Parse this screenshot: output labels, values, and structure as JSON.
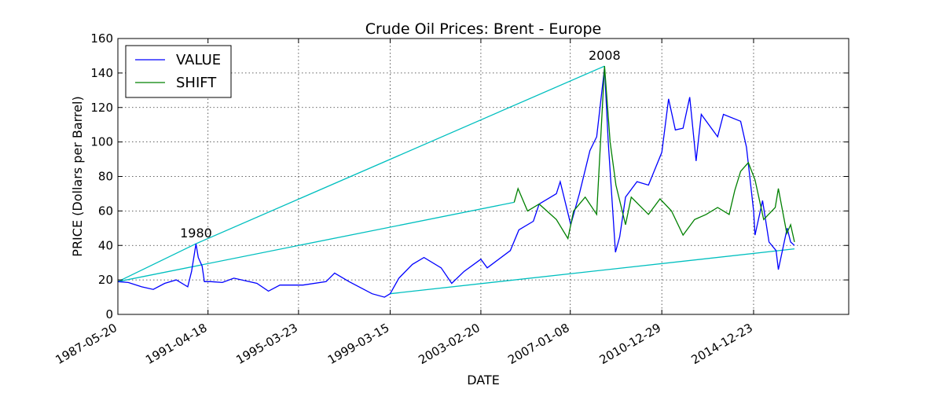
{
  "chart_data": {
    "type": "line",
    "title": "Crude Oil Prices: Brent - Europe",
    "xlabel": "DATE",
    "ylabel": "PRICE (Dollars per Barrel)",
    "x_range": [
      "1987-05-20",
      "2019-02-08"
    ],
    "ylim": [
      0,
      160
    ],
    "y_ticks": [
      0,
      20,
      40,
      60,
      80,
      100,
      120,
      140,
      160
    ],
    "x_ticks": [
      "1987-05-20",
      "1991-04-18",
      "1995-03-23",
      "1999-03-15",
      "2003-02-20",
      "2007-01-08",
      "2010-12-29",
      "2014-12-23"
    ],
    "grid": true,
    "legend_position": "top-left",
    "series": [
      {
        "name": "VALUE",
        "color": "#0000ff",
        "points": [
          [
            "1987-05-20",
            19
          ],
          [
            "1987-11-01",
            18.5
          ],
          [
            "1988-06-01",
            16
          ],
          [
            "1988-12-01",
            14.5
          ],
          [
            "1989-06-01",
            18
          ],
          [
            "1989-12-01",
            20
          ],
          [
            "1990-06-01",
            16
          ],
          [
            "1990-08-01",
            25
          ],
          [
            "1990-10-10",
            41
          ],
          [
            "1990-11-15",
            33
          ],
          [
            "1991-01-15",
            28
          ],
          [
            "1991-02-20",
            19
          ],
          [
            "1991-06-01",
            19
          ],
          [
            "1991-12-01",
            18.5
          ],
          [
            "1992-06-01",
            21
          ],
          [
            "1993-06-01",
            18
          ],
          [
            "1993-12-01",
            13.5
          ],
          [
            "1994-06-01",
            17
          ],
          [
            "1995-06-01",
            17
          ],
          [
            "1996-06-01",
            19
          ],
          [
            "1996-10-15",
            24
          ],
          [
            "1997-06-01",
            19
          ],
          [
            "1998-06-01",
            12
          ],
          [
            "1998-12-15",
            10
          ],
          [
            "1999-03-15",
            12
          ],
          [
            "1999-08-01",
            21
          ],
          [
            "2000-03-01",
            29
          ],
          [
            "2000-09-01",
            33
          ],
          [
            "2001-06-01",
            27
          ],
          [
            "2001-11-15",
            18
          ],
          [
            "2002-06-01",
            25
          ],
          [
            "2003-02-20",
            32
          ],
          [
            "2003-06-01",
            27
          ],
          [
            "2004-06-01",
            37
          ],
          [
            "2004-10-15",
            49
          ],
          [
            "2005-06-01",
            54
          ],
          [
            "2005-09-01",
            64
          ],
          [
            "2006-06-01",
            70
          ],
          [
            "2006-08-01",
            77
          ],
          [
            "2007-01-15",
            52
          ],
          [
            "2007-06-01",
            70
          ],
          [
            "2007-11-15",
            95
          ],
          [
            "2008-03-01",
            103
          ],
          [
            "2008-07-04",
            143
          ],
          [
            "2008-09-01",
            100
          ],
          [
            "2008-12-24",
            36
          ],
          [
            "2009-03-01",
            45
          ],
          [
            "2009-06-01",
            68
          ],
          [
            "2009-12-01",
            77
          ],
          [
            "2010-06-01",
            75
          ],
          [
            "2010-12-29",
            94
          ],
          [
            "2011-04-15",
            125
          ],
          [
            "2011-08-01",
            107
          ],
          [
            "2011-12-01",
            108
          ],
          [
            "2012-03-15",
            126
          ],
          [
            "2012-06-25",
            89
          ],
          [
            "2012-09-15",
            116
          ],
          [
            "2013-06-01",
            103
          ],
          [
            "2013-09-01",
            116
          ],
          [
            "2014-06-01",
            112
          ],
          [
            "2014-09-01",
            97
          ],
          [
            "2014-12-23",
            60
          ],
          [
            "2015-01-15",
            46
          ],
          [
            "2015-05-15",
            66
          ],
          [
            "2015-08-25",
            42
          ],
          [
            "2015-12-15",
            37
          ],
          [
            "2016-01-20",
            26
          ],
          [
            "2016-06-08",
            50
          ],
          [
            "2016-08-01",
            42
          ],
          [
            "2016-10-01",
            40
          ]
        ]
      },
      {
        "name": "SHIFT",
        "color": "#008000",
        "points": [
          [
            "2004-08-01",
            65
          ],
          [
            "2004-10-01",
            73
          ],
          [
            "2005-03-01",
            60
          ],
          [
            "2005-09-01",
            64
          ],
          [
            "2006-06-01",
            55
          ],
          [
            "2006-12-01",
            44
          ],
          [
            "2007-03-01",
            60
          ],
          [
            "2007-09-01",
            68
          ],
          [
            "2008-03-01",
            58
          ],
          [
            "2008-07-04",
            144
          ],
          [
            "2008-10-01",
            100
          ],
          [
            "2009-01-01",
            75
          ],
          [
            "2009-06-01",
            52
          ],
          [
            "2009-09-01",
            68
          ],
          [
            "2010-06-01",
            58
          ],
          [
            "2010-12-01",
            67
          ],
          [
            "2011-06-01",
            60
          ],
          [
            "2011-12-01",
            46
          ],
          [
            "2012-06-01",
            55
          ],
          [
            "2012-12-01",
            58
          ],
          [
            "2013-06-01",
            62
          ],
          [
            "2013-12-01",
            58
          ],
          [
            "2014-03-01",
            72
          ],
          [
            "2014-06-01",
            83
          ],
          [
            "2014-10-01",
            88
          ],
          [
            "2015-01-15",
            78
          ],
          [
            "2015-06-01",
            55
          ],
          [
            "2015-12-01",
            62
          ],
          [
            "2016-01-20",
            73
          ],
          [
            "2016-06-01",
            47
          ],
          [
            "2016-08-01",
            52
          ],
          [
            "2016-10-01",
            42
          ]
        ]
      }
    ],
    "connector_lines": {
      "color": "#00bfbf",
      "segments": [
        [
          [
            "1987-05-20",
            19
          ],
          [
            "1990-10-10",
            41
          ]
        ],
        [
          [
            "1990-10-10",
            41
          ],
          [
            "2008-07-04",
            144
          ]
        ],
        [
          [
            "1987-05-20",
            19
          ],
          [
            "2004-08-01",
            65
          ]
        ],
        [
          [
            "1999-03-15",
            12
          ],
          [
            "2016-10-01",
            38
          ]
        ]
      ]
    },
    "annotations": [
      {
        "text": "1980",
        "x": "1990-10-10",
        "y": 41
      },
      {
        "text": "2008",
        "x": "2008-07-04",
        "y": 144
      }
    ]
  }
}
